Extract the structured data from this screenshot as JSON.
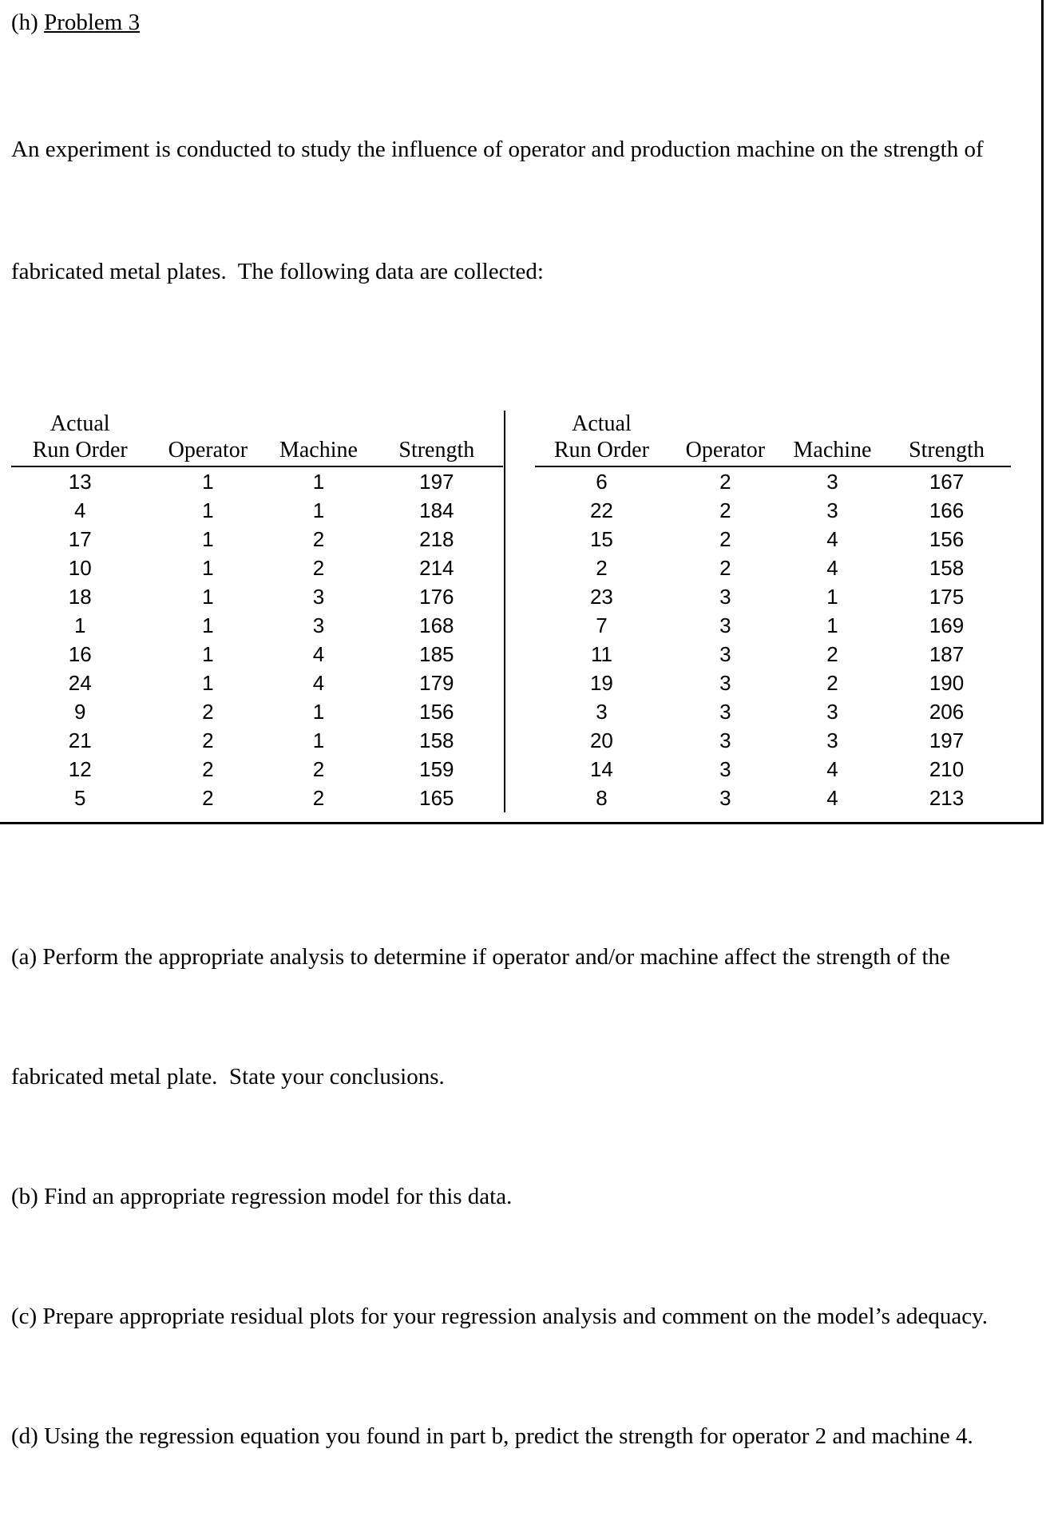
{
  "page": {
    "heading_prefix": "(h) ",
    "heading_title": "Problem 3",
    "intro_lines": [
      "An experiment is conducted to study the influence of operator and production machine on the strength of",
      "fabricated metal plates.  The following data are collected:"
    ],
    "question_lines": [
      "(a) Perform the appropriate analysis to determine if operator and/or machine affect the strength of the",
      "fabricated metal plate.  State your conclusions.",
      "(b) Find an appropriate regression model for this data.",
      "(c) Prepare appropriate residual plots for your regression analysis and comment on the model’s adequacy.",
      "(d) Using the regression equation you found in part b, predict the strength for operator 2 and machine 4."
    ]
  },
  "table_header": {
    "col1_top": "Actual",
    "col1": "Run Order",
    "col2": "Operator",
    "col3": "Machine",
    "col4": "Strength"
  },
  "tables": [
    {
      "name": "left",
      "rows": [
        [
          13,
          1,
          1,
          197
        ],
        [
          4,
          1,
          1,
          184
        ],
        [
          17,
          1,
          2,
          218
        ],
        [
          10,
          1,
          2,
          214
        ],
        [
          18,
          1,
          3,
          176
        ],
        [
          1,
          1,
          3,
          168
        ],
        [
          16,
          1,
          4,
          185
        ],
        [
          24,
          1,
          4,
          179
        ],
        [
          9,
          2,
          1,
          156
        ],
        [
          21,
          2,
          1,
          158
        ],
        [
          12,
          2,
          2,
          159
        ],
        [
          5,
          2,
          2,
          165
        ]
      ]
    },
    {
      "name": "right",
      "rows": [
        [
          6,
          2,
          3,
          167
        ],
        [
          22,
          2,
          3,
          166
        ],
        [
          15,
          2,
          4,
          156
        ],
        [
          2,
          2,
          4,
          158
        ],
        [
          23,
          3,
          1,
          175
        ],
        [
          7,
          3,
          1,
          169
        ],
        [
          11,
          3,
          2,
          187
        ],
        [
          19,
          3,
          2,
          190
        ],
        [
          3,
          3,
          3,
          206
        ],
        [
          20,
          3,
          3,
          197
        ],
        [
          14,
          3,
          4,
          210
        ],
        [
          8,
          3,
          4,
          213
        ]
      ]
    }
  ],
  "colors": {
    "text": "#000000",
    "border": "#000000",
    "background": "#ffffff"
  }
}
